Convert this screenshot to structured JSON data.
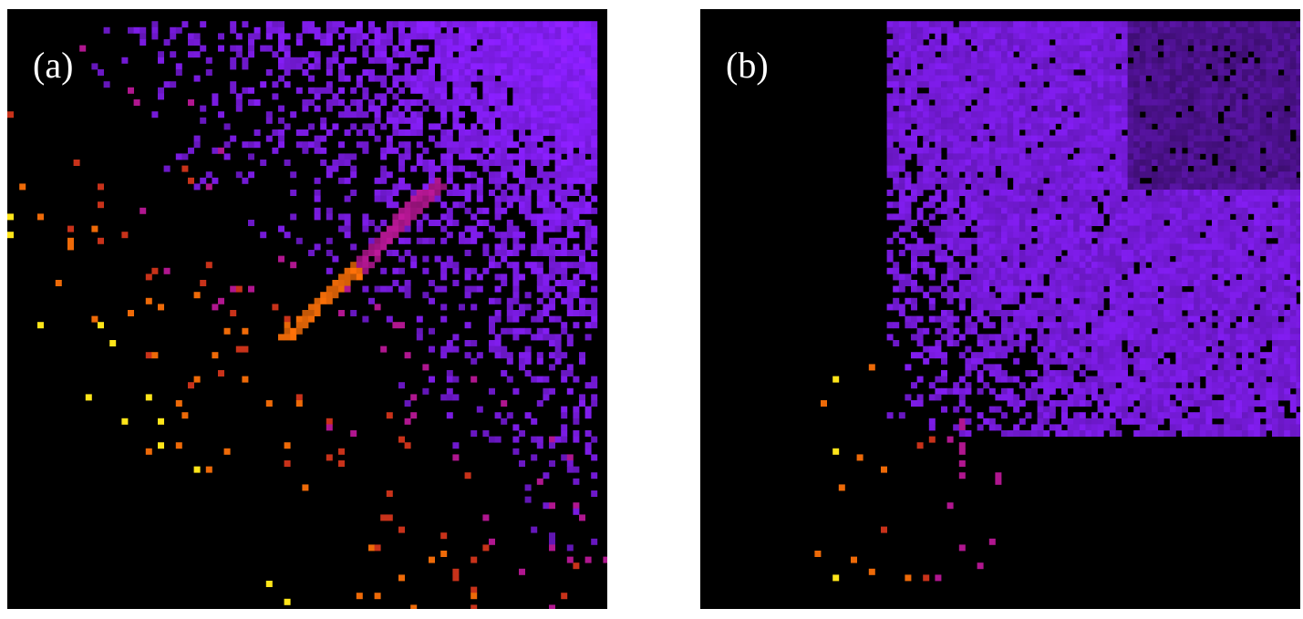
{
  "panels": [
    {
      "id": "a",
      "label": "(a)"
    },
    {
      "id": "b",
      "label": "(b)"
    }
  ],
  "colors": {
    "background": "#000000",
    "violet": "#8a1fff",
    "magenta": "#b0168f",
    "red": "#c8321a",
    "orange": "#ee6a08",
    "yellow": "#ffe51a"
  }
}
